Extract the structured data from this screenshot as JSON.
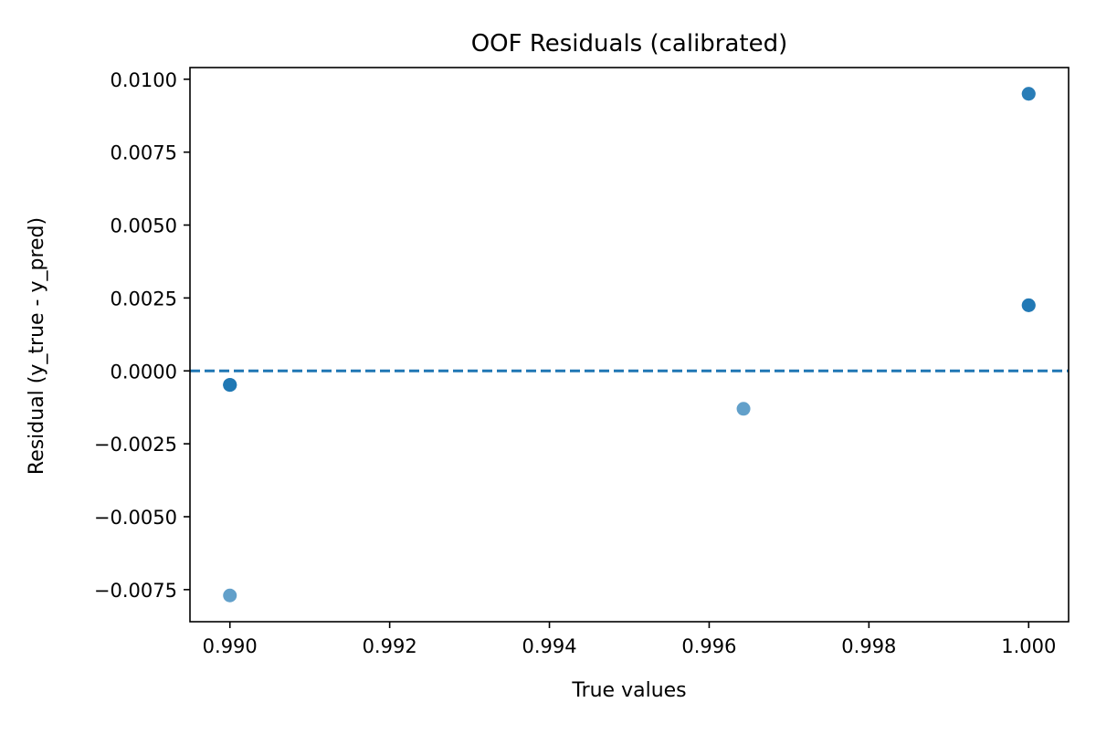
{
  "chart_data": {
    "type": "scatter",
    "title": "OOF Residuals (calibrated)",
    "xlabel": "True values",
    "ylabel": "Residual (y_true - y_pred)",
    "xlim": [
      0.9895,
      1.0005
    ],
    "ylim": [
      -0.0086,
      0.0104
    ],
    "x_ticks": [
      0.99,
      0.992,
      0.994,
      0.996,
      0.998,
      1.0
    ],
    "x_tick_labels": [
      "0.990",
      "0.992",
      "0.994",
      "0.996",
      "0.998",
      "1.000"
    ],
    "y_ticks": [
      0.01,
      0.0075,
      0.005,
      0.0025,
      0.0,
      -0.0025,
      -0.005,
      -0.0075
    ],
    "y_tick_labels": [
      "0.0100",
      "0.0075",
      "0.0050",
      "0.0025",
      "0.0000",
      "−0.0025",
      "−0.0050",
      "−0.0075"
    ],
    "reference_line": {
      "y": 0.0,
      "style": "dashed"
    },
    "grid": false,
    "series": [
      {
        "name": "residuals",
        "color": "#1f77b4",
        "points": [
          {
            "x": 0.99,
            "y": -0.00048,
            "alpha": 0.95
          },
          {
            "x": 0.99,
            "y": -0.00048,
            "alpha": 0.7
          },
          {
            "x": 0.99,
            "y": -0.00048,
            "alpha": 0.7
          },
          {
            "x": 0.99,
            "y": -0.0077,
            "alpha": 0.7
          },
          {
            "x": 0.99643,
            "y": -0.0013,
            "alpha": 0.7
          },
          {
            "x": 1.0,
            "y": 0.0095,
            "alpha": 0.85
          },
          {
            "x": 1.0,
            "y": 0.0095,
            "alpha": 0.7
          },
          {
            "x": 1.0,
            "y": 0.00225,
            "alpha": 0.95
          },
          {
            "x": 1.0,
            "y": 0.00225,
            "alpha": 0.7
          }
        ]
      }
    ]
  }
}
